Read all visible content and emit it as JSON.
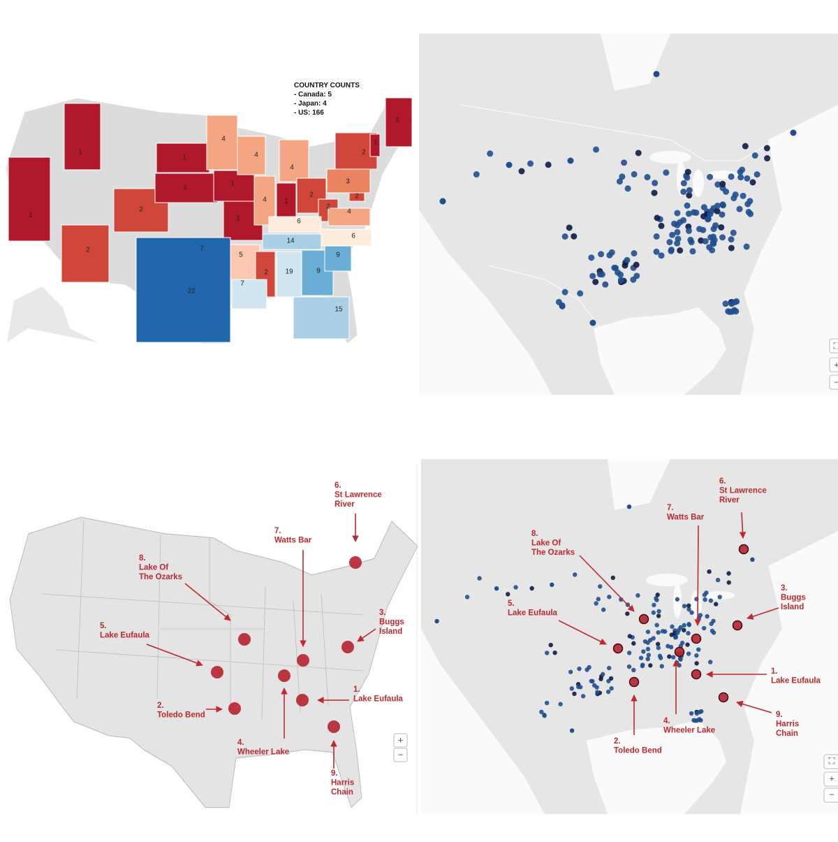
{
  "choropleth": {
    "legend": {
      "title": "COUNTRY COUNTS",
      "lines": [
        "- Canada: 5",
        "- Japan: 4",
        "- US: 166"
      ]
    },
    "states": [
      {
        "value": 1,
        "color": "#b2182b"
      },
      {
        "value": 1,
        "color": "#b2182b"
      },
      {
        "value": 2,
        "color": "#d0473a"
      },
      {
        "value": 2,
        "color": "#d0473a"
      },
      {
        "value": 1,
        "color": "#b2182b"
      },
      {
        "value": 1,
        "color": "#b2182b"
      },
      {
        "value": 1,
        "color": "#b2182b"
      },
      {
        "value": 1,
        "color": "#b2182b"
      },
      {
        "value": 4,
        "color": "#f4a582"
      },
      {
        "value": 4,
        "color": "#f4a582"
      },
      {
        "value": 4,
        "color": "#f4a582"
      },
      {
        "value": 4,
        "color": "#f4a582"
      },
      {
        "value": 1,
        "color": "#b2182b"
      },
      {
        "value": 2,
        "color": "#d0473a"
      },
      {
        "value": 2,
        "color": "#d0473a"
      },
      {
        "value": 6,
        "color": "#fdebdc"
      },
      {
        "value": 3,
        "color": "#eb8360"
      },
      {
        "value": 2,
        "color": "#d0473a"
      },
      {
        "value": 1,
        "color": "#b2182b"
      },
      {
        "value": 1,
        "color": "#b2182b"
      },
      {
        "value": 4,
        "color": "#f4a582"
      },
      {
        "value": 2,
        "color": "#d0473a"
      },
      {
        "value": 6,
        "color": "#fdebdc"
      },
      {
        "value": 14,
        "color": "#a9cfe5"
      },
      {
        "value": 7,
        "color": "#d1e5f0"
      },
      {
        "value": 5,
        "color": "#fcc7b0"
      },
      {
        "value": 2,
        "color": "#d0473a"
      },
      {
        "value": 19,
        "color": "#d1e5f0"
      },
      {
        "value": 9,
        "color": "#6aaed6"
      },
      {
        "value": 9,
        "color": "#6aaed6"
      },
      {
        "value": 7,
        "color": "#d1e5f0"
      },
      {
        "value": 22,
        "color": "#2166ac"
      },
      {
        "value": 15,
        "color": "#abd0e6"
      }
    ]
  },
  "lakes": [
    {
      "rank": "1.",
      "lines": [
        "Lake Eufaula"
      ]
    },
    {
      "rank": "2.",
      "lines": [
        "Toledo Bend"
      ]
    },
    {
      "rank": "3.",
      "lines": [
        "Buggs",
        "Island"
      ]
    },
    {
      "rank": "4.",
      "lines": [
        "Wheeler Lake"
      ]
    },
    {
      "rank": "5.",
      "lines": [
        "Lake Eufaula"
      ]
    },
    {
      "rank": "6.",
      "lines": [
        "St Lawrence",
        "River"
      ]
    },
    {
      "rank": "7.",
      "lines": [
        "Watts Bar"
      ]
    },
    {
      "rank": "8.",
      "lines": [
        "Lake Of",
        "The Ozarks"
      ]
    },
    {
      "rank": "9.",
      "lines": [
        "Harris",
        "Chain"
      ]
    }
  ],
  "controls": {
    "zoom_in": "+",
    "zoom_out": "−",
    "fullscreen": "⛶"
  }
}
